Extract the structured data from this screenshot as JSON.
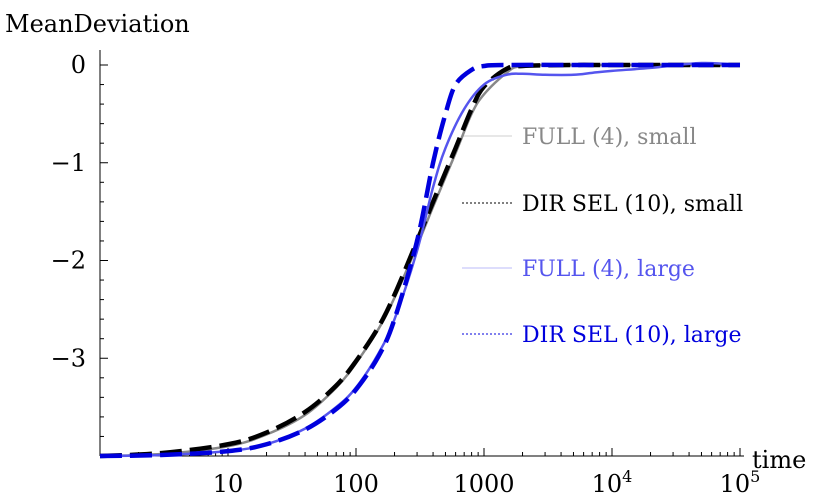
{
  "chart_data": {
    "type": "line",
    "title": "",
    "xlabel": "time",
    "ylabel": "MeanDeviation",
    "xscale": "log",
    "xlim": [
      1,
      100000
    ],
    "ylim": [
      -4.1,
      0.1
    ],
    "x_ticks": [
      {
        "value": 10,
        "label": "10"
      },
      {
        "value": 100,
        "label": "100"
      },
      {
        "value": 1000,
        "label": "1000"
      },
      {
        "value": 10000,
        "base": "10",
        "exp": "4"
      },
      {
        "value": 100000,
        "base": "10",
        "exp": "5"
      }
    ],
    "y_ticks": [
      {
        "value": 0,
        "label": "0"
      },
      {
        "value": -1,
        "label": "−1"
      },
      {
        "value": -2,
        "label": "−2"
      },
      {
        "value": -3,
        "label": "−3"
      }
    ],
    "legend_position": "right",
    "grid": false,
    "series": [
      {
        "name": "FULL (4), small",
        "color": "#888888",
        "style": "solid",
        "x": [
          1,
          3,
          10,
          20,
          40,
          70,
          100,
          150,
          200,
          300,
          400,
          600,
          800,
          1000,
          1500,
          2000,
          5000,
          10000,
          100000
        ],
        "y": [
          -4.0,
          -3.98,
          -3.9,
          -3.78,
          -3.58,
          -3.3,
          -3.05,
          -2.7,
          -2.38,
          -1.85,
          -1.45,
          -0.9,
          -0.5,
          -0.3,
          -0.08,
          -0.01,
          0.0,
          0.0,
          0.0
        ]
      },
      {
        "name": "DIR SEL (10), small",
        "color": "#000000",
        "style": "dashed",
        "x": [
          1,
          3,
          10,
          20,
          40,
          70,
          100,
          150,
          200,
          300,
          400,
          600,
          800,
          1000,
          1500,
          2000,
          5000,
          10000,
          100000
        ],
        "y": [
          -4.0,
          -3.97,
          -3.88,
          -3.76,
          -3.55,
          -3.28,
          -3.03,
          -2.68,
          -2.35,
          -1.8,
          -1.4,
          -0.85,
          -0.45,
          -0.22,
          -0.04,
          -0.01,
          0.0,
          0.0,
          0.0
        ]
      },
      {
        "name": "FULL (4), large",
        "color": "#5555ee",
        "style": "solid",
        "x": [
          1,
          3,
          10,
          20,
          40,
          70,
          100,
          150,
          200,
          300,
          400,
          500,
          700,
          1000,
          1500,
          2000,
          3000,
          5000,
          7000,
          10000,
          20000,
          50000,
          100000
        ],
        "y": [
          -4.0,
          -3.99,
          -3.95,
          -3.88,
          -3.72,
          -3.5,
          -3.3,
          -2.95,
          -2.6,
          -1.9,
          -1.25,
          -0.85,
          -0.45,
          -0.2,
          -0.1,
          -0.09,
          -0.1,
          -0.1,
          -0.08,
          -0.06,
          -0.03,
          0.02,
          0.0
        ]
      },
      {
        "name": "DIR SEL (10), large",
        "color": "#0000dd",
        "style": "dashed",
        "x": [
          1,
          3,
          10,
          20,
          40,
          70,
          100,
          150,
          200,
          300,
          400,
          500,
          600,
          800,
          1000,
          1500,
          10000,
          100000
        ],
        "y": [
          -4.0,
          -3.99,
          -3.95,
          -3.88,
          -3.73,
          -3.52,
          -3.32,
          -2.98,
          -2.6,
          -1.8,
          -1.0,
          -0.5,
          -0.2,
          -0.05,
          -0.01,
          0.0,
          0.0,
          0.0
        ]
      }
    ]
  }
}
